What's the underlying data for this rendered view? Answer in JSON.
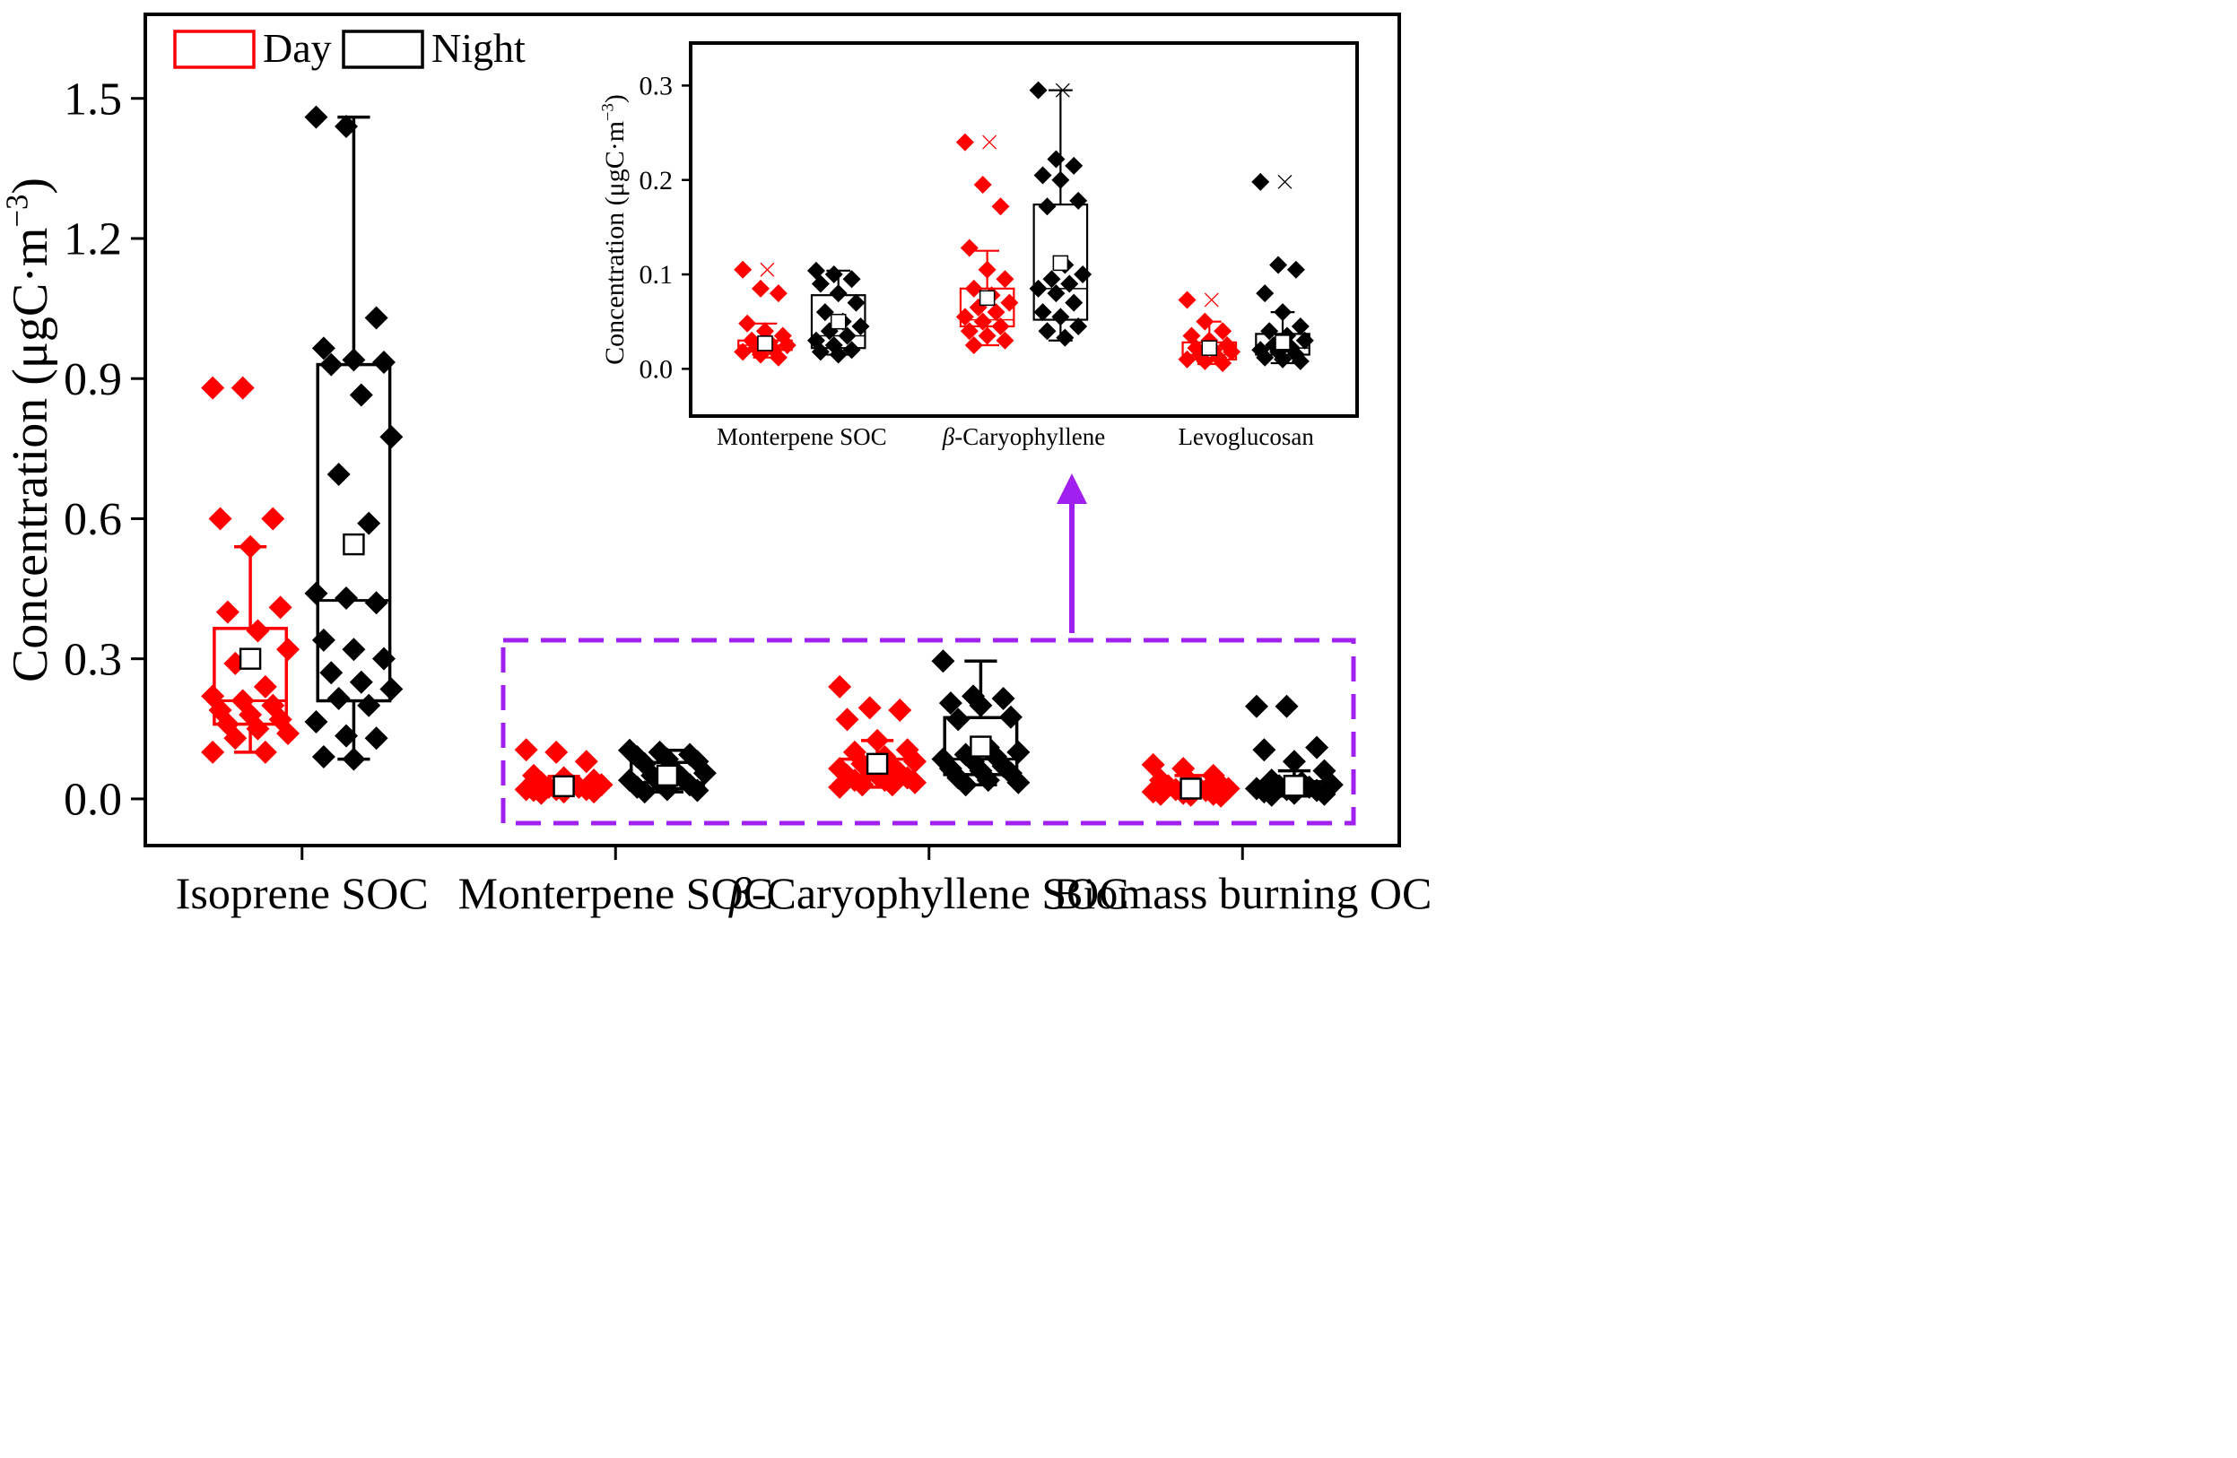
{
  "colors": {
    "day": "#ff0000",
    "night": "#000000",
    "highlight": "#a020f0",
    "axis": "#000000"
  },
  "chart_data": [
    {
      "type": "box",
      "role": "main",
      "ylabel": "Concentration (μgC·m⁻³)",
      "ylabel_parts": {
        "prefix": "Concentration (μgC·m",
        "sup": "−3",
        "suffix": ")"
      },
      "ylim": [
        -0.1,
        1.68
      ],
      "yticks": [
        0.0,
        0.3,
        0.6,
        0.9,
        1.2,
        1.5
      ],
      "ytick_labels": [
        "0.0",
        "0.3",
        "0.6",
        "0.9",
        "1.2",
        "1.5"
      ],
      "categories": [
        {
          "label": "Isoprene SOC",
          "italic_prefix": ""
        },
        {
          "label": "Monterpene SOC",
          "italic_prefix": ""
        },
        {
          "label": "-Caryophyllene SOC",
          "italic_prefix": "β"
        },
        {
          "label": "Biomass burning OC",
          "italic_prefix": ""
        }
      ],
      "legend": [
        {
          "name": "Day",
          "color": "#ff0000"
        },
        {
          "name": "Night",
          "color": "#000000"
        }
      ],
      "series": [
        {
          "name": "Day",
          "color": "#ff0000",
          "boxes": [
            {
              "q1": 0.16,
              "median": 0.21,
              "q3": 0.365,
              "mean": 0.3,
              "wlo": 0.1,
              "whi": 0.54,
              "points": [
                0.88,
                0.88,
                0.6,
                0.6,
                0.54,
                0.41,
                0.4,
                0.36,
                0.32,
                0.29,
                0.24,
                0.22,
                0.21,
                0.2,
                0.19,
                0.18,
                0.17,
                0.16,
                0.15,
                0.14,
                0.13,
                0.1,
                0.1
              ]
            },
            {
              "q1": 0.02,
              "median": 0.025,
              "q3": 0.03,
              "mean": 0.027,
              "wlo": 0.012,
              "whi": 0.048,
              "points": [
                0.105,
                0.1,
                0.08,
                0.05,
                0.045,
                0.04,
                0.035,
                0.03,
                0.03,
                0.025,
                0.025,
                0.02,
                0.02,
                0.02,
                0.018,
                0.015,
                0.015,
                0.012
              ]
            },
            {
              "q1": 0.045,
              "median": 0.052,
              "q3": 0.085,
              "mean": 0.075,
              "wlo": 0.025,
              "whi": 0.125,
              "points": [
                0.24,
                0.195,
                0.19,
                0.17,
                0.125,
                0.105,
                0.1,
                0.09,
                0.08,
                0.075,
                0.07,
                0.065,
                0.06,
                0.055,
                0.05,
                0.05,
                0.045,
                0.04,
                0.04,
                0.035,
                0.03,
                0.03,
                0.025
              ]
            },
            {
              "q1": 0.01,
              "median": 0.015,
              "q3": 0.027,
              "mean": 0.022,
              "wlo": 0.005,
              "whi": 0.05,
              "points": [
                0.073,
                0.065,
                0.05,
                0.04,
                0.035,
                0.03,
                0.028,
                0.025,
                0.022,
                0.02,
                0.018,
                0.015,
                0.012,
                0.01,
                0.01,
                0.008,
                0.006
              ]
            }
          ]
        },
        {
          "name": "Night",
          "color": "#000000",
          "boxes": [
            {
              "q1": 0.21,
              "median": 0.425,
              "q3": 0.93,
              "mean": 0.545,
              "wlo": 0.085,
              "whi": 1.46,
              "points": [
                1.46,
                1.44,
                1.03,
                0.965,
                0.94,
                0.935,
                0.93,
                0.865,
                0.775,
                0.695,
                0.59,
                0.44,
                0.43,
                0.42,
                0.34,
                0.32,
                0.3,
                0.27,
                0.25,
                0.235,
                0.215,
                0.2,
                0.165,
                0.135,
                0.13,
                0.09,
                0.085
              ]
            },
            {
              "q1": 0.022,
              "median": 0.035,
              "q3": 0.078,
              "mean": 0.05,
              "wlo": 0.015,
              "whi": 0.104,
              "points": [
                0.104,
                0.1,
                0.095,
                0.09,
                0.085,
                0.08,
                0.075,
                0.06,
                0.055,
                0.05,
                0.045,
                0.04,
                0.035,
                0.03,
                0.025,
                0.02,
                0.018,
                0.015
              ]
            },
            {
              "q1": 0.052,
              "median": 0.085,
              "q3": 0.174,
              "mean": 0.112,
              "wlo": 0.03,
              "whi": 0.295,
              "points": [
                0.295,
                0.22,
                0.215,
                0.205,
                0.2,
                0.175,
                0.17,
                0.11,
                0.1,
                0.095,
                0.09,
                0.085,
                0.08,
                0.07,
                0.065,
                0.06,
                0.055,
                0.045,
                0.04,
                0.035,
                0.03
              ]
            },
            {
              "q1": 0.015,
              "median": 0.022,
              "q3": 0.037,
              "mean": 0.028,
              "wlo": 0.006,
              "whi": 0.06,
              "points": [
                0.198,
                0.198,
                0.11,
                0.105,
                0.08,
                0.06,
                0.04,
                0.035,
                0.03,
                0.028,
                0.025,
                0.022,
                0.02,
                0.018,
                0.015,
                0.012,
                0.01,
                0.008
              ]
            }
          ]
        }
      ]
    },
    {
      "type": "box",
      "role": "inset",
      "ylabel": "Concentration (μgC·m⁻³)",
      "ylabel_parts": {
        "prefix": "Concentration (μgC·m",
        "sup": "−3",
        "suffix": ")"
      },
      "ylim": [
        -0.05,
        0.345
      ],
      "yticks": [
        0.0,
        0.1,
        0.2,
        0.3
      ],
      "ytick_labels": [
        "0.0",
        "0.1",
        "0.2",
        "0.3"
      ],
      "categories": [
        {
          "label": "Monterpene SOC",
          "italic_prefix": ""
        },
        {
          "label": "-Caryophyllene",
          "italic_prefix": "β"
        },
        {
          "label": "Levoglucosan",
          "italic_prefix": ""
        }
      ],
      "series": [
        {
          "name": "Day",
          "color": "#ff0000",
          "boxes": [
            {
              "q1": 0.02,
              "median": 0.025,
              "q3": 0.03,
              "mean": 0.027,
              "wlo": 0.012,
              "whi": 0.048,
              "max_marker": 0.105,
              "points": [
                0.105,
                0.085,
                0.08,
                0.048,
                0.04,
                0.035,
                0.03,
                0.028,
                0.025,
                0.022,
                0.02,
                0.018,
                0.015,
                0.012
              ]
            },
            {
              "q1": 0.045,
              "median": 0.052,
              "q3": 0.085,
              "mean": 0.075,
              "wlo": 0.025,
              "whi": 0.125,
              "max_marker": 0.24,
              "points": [
                0.24,
                0.195,
                0.172,
                0.128,
                0.105,
                0.095,
                0.085,
                0.078,
                0.07,
                0.065,
                0.06,
                0.055,
                0.05,
                0.045,
                0.04,
                0.035,
                0.03,
                0.025
              ]
            },
            {
              "q1": 0.01,
              "median": 0.015,
              "q3": 0.028,
              "mean": 0.022,
              "wlo": 0.005,
              "whi": 0.05,
              "max_marker": 0.073,
              "points": [
                0.073,
                0.05,
                0.04,
                0.035,
                0.03,
                0.025,
                0.022,
                0.02,
                0.018,
                0.015,
                0.012,
                0.01,
                0.008,
                0.006
              ]
            }
          ]
        },
        {
          "name": "Night",
          "color": "#000000",
          "boxes": [
            {
              "q1": 0.022,
              "median": 0.035,
              "q3": 0.078,
              "mean": 0.05,
              "wlo": 0.015,
              "whi": 0.104,
              "max_marker": null,
              "points": [
                0.104,
                0.1,
                0.095,
                0.09,
                0.08,
                0.07,
                0.06,
                0.05,
                0.045,
                0.04,
                0.035,
                0.03,
                0.025,
                0.02,
                0.018,
                0.015
              ]
            },
            {
              "q1": 0.052,
              "median": 0.085,
              "q3": 0.174,
              "mean": 0.112,
              "wlo": 0.03,
              "whi": 0.295,
              "max_marker": 0.295,
              "points": [
                0.295,
                0.222,
                0.215,
                0.205,
                0.2,
                0.178,
                0.172,
                0.11,
                0.1,
                0.095,
                0.09,
                0.085,
                0.08,
                0.07,
                0.06,
                0.055,
                0.045,
                0.04,
                0.033
              ]
            },
            {
              "q1": 0.015,
              "median": 0.022,
              "q3": 0.037,
              "mean": 0.028,
              "wlo": 0.006,
              "whi": 0.06,
              "max_marker": 0.198,
              "points": [
                0.198,
                0.11,
                0.105,
                0.08,
                0.06,
                0.045,
                0.04,
                0.035,
                0.03,
                0.025,
                0.022,
                0.02,
                0.018,
                0.015,
                0.012,
                0.01,
                0.008
              ]
            }
          ]
        }
      ]
    }
  ]
}
